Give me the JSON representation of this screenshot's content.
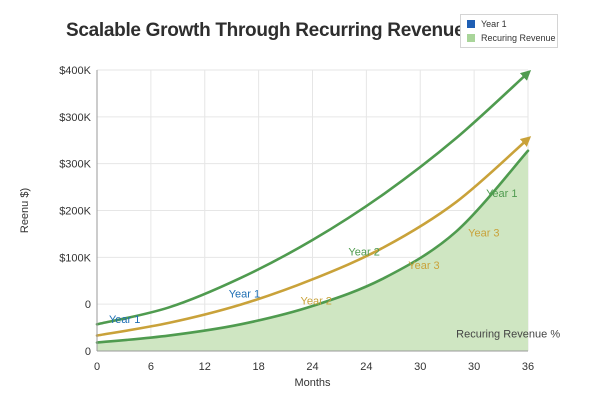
{
  "chart_data": {
    "type": "area",
    "title": "Scalable Growth Through Recurring Revenue",
    "xlabel": "Months",
    "ylabel": "Reenu $)",
    "x_tick_labels": [
      "0",
      "6",
      "12",
      "18",
      "24",
      "24",
      "30",
      "30",
      "36"
    ],
    "y_tick_labels": [
      "0",
      "0",
      "$100K",
      "$200K",
      "$300K",
      "$300K",
      "$400K"
    ],
    "grid": true,
    "legend": {
      "position": "top-right",
      "entries": [
        {
          "label": "Year 1",
          "color": "#1f5fb4"
        },
        {
          "label": "Recuring Revenue",
          "color": "#a9d59a"
        }
      ]
    },
    "series": [
      {
        "color": "#4f9b4f",
        "values": [
          [
            0,
            38
          ],
          [
            6,
            62
          ],
          [
            12,
            104
          ],
          [
            18,
            158
          ],
          [
            24,
            224
          ],
          [
            30,
            303
          ],
          [
            36,
            396
          ]
        ]
      },
      {
        "color": "#c9a23a",
        "values": [
          [
            0,
            22
          ],
          [
            6,
            40
          ],
          [
            12,
            66
          ],
          [
            18,
            102
          ],
          [
            24,
            148
          ],
          [
            30,
            212
          ],
          [
            36,
            302
          ]
        ]
      },
      {
        "color": "#4f9b4f",
        "fill": "#cfe6c2",
        "values": [
          [
            0,
            12
          ],
          [
            6,
            22
          ],
          [
            12,
            38
          ],
          [
            18,
            64
          ],
          [
            24,
            104
          ],
          [
            30,
            170
          ],
          [
            36,
            285
          ]
        ]
      }
    ],
    "annotations": [
      {
        "text": "Year 1",
        "color": "#1f6fb4",
        "x": 1,
        "y": 40
      },
      {
        "text": "Year 1",
        "color": "#1f6fb4",
        "x": 11,
        "y": 76
      },
      {
        "text": "Year 2",
        "color": "#c9a23a",
        "x": 17,
        "y": 66
      },
      {
        "text": "Year 2",
        "color": "#4f9b4f",
        "x": 21,
        "y": 136
      },
      {
        "text": "Year 3",
        "color": "#c9a23a",
        "x": 26,
        "y": 117
      },
      {
        "text": "Year 3",
        "color": "#c9a23a",
        "x": 31,
        "y": 163
      },
      {
        "text": "Year 1",
        "color": "#4f9b4f",
        "x": 32.5,
        "y": 219
      },
      {
        "text": "Recuring Revenue %",
        "color": "#444444",
        "x": 30,
        "y": 19
      }
    ]
  }
}
